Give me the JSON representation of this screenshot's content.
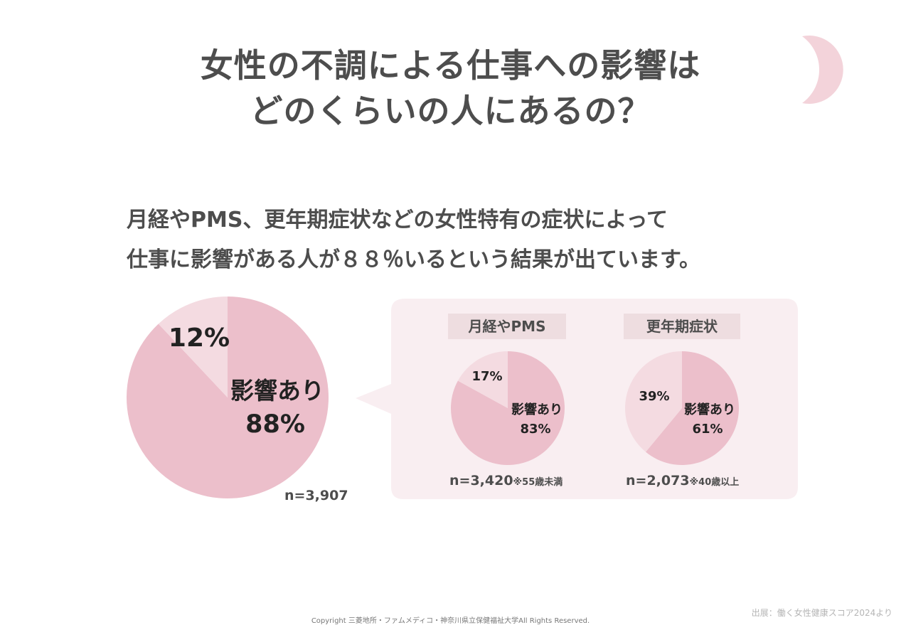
{
  "title_lines": [
    "女性の不調による仕事への影響は",
    "どのくらいの人にあるの？"
  ],
  "lead_lines": [
    "月経やPMS、更年期症状などの女性特有の症状によって",
    "仕事に影響がある人が８８％いるという結果が出ています。"
  ],
  "colors": {
    "affected": "#ecbfcb",
    "not_affected": "#f4dbe1",
    "panel": "#f9eef1",
    "label_bg": "#eedde0",
    "moon": "#f3d3da"
  },
  "chart_data": [
    {
      "type": "pie",
      "slices": [
        {
          "label": "影響あり",
          "value": 88,
          "text": "88%"
        },
        {
          "label": "",
          "value": 12,
          "text": "12%"
        }
      ],
      "n": "n=3,907"
    },
    {
      "type": "pie",
      "title": "月経やPMS",
      "slices": [
        {
          "label": "影響あり",
          "value": 83,
          "text": "83%"
        },
        {
          "label": "",
          "value": 17,
          "text": "17%"
        }
      ],
      "n": "n=3,420",
      "note": "※55歳未満"
    },
    {
      "type": "pie",
      "title": "更年期症状",
      "slices": [
        {
          "label": "影響あり",
          "value": 61,
          "text": "61%"
        },
        {
          "label": "",
          "value": 39,
          "text": "39%"
        }
      ],
      "n": "n=2,073",
      "note": "※40歳以上"
    }
  ],
  "copyright": "Copyright 三菱地所・ファムメディコ・神奈川県立保健福祉大学All Rights Reserved.",
  "source": "出展：働く女性健康スコア2024より"
}
